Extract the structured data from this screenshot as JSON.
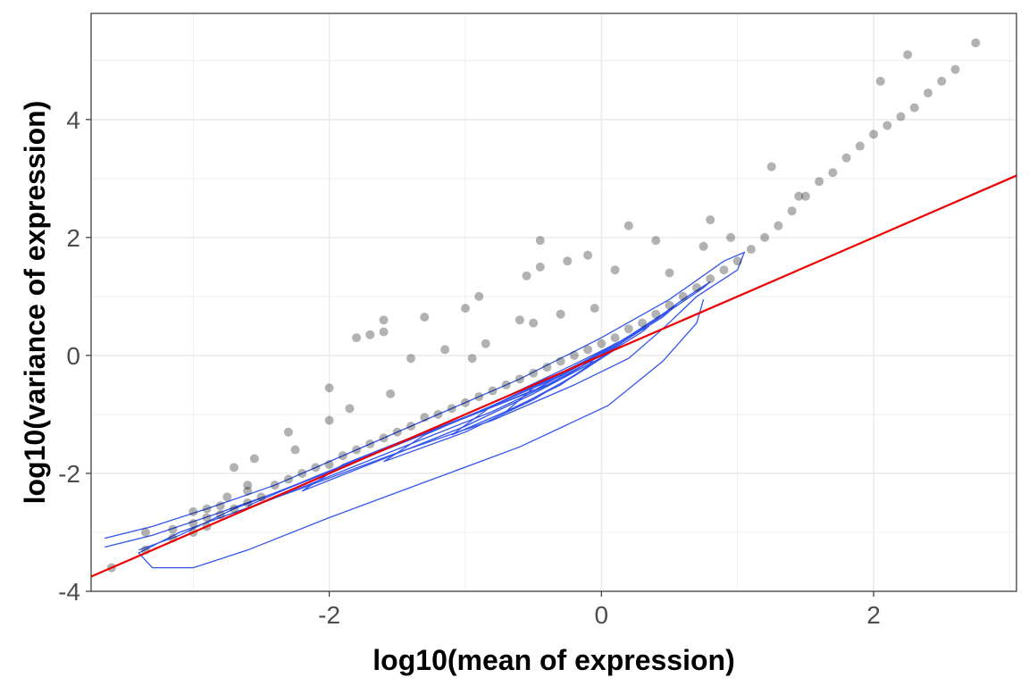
{
  "chart_data": {
    "type": "scatter",
    "title": "",
    "xlabel": "log10(mean of expression)",
    "ylabel": "log10(variance of expression)",
    "xlim": [
      -3.75,
      3.05
    ],
    "ylim": [
      -4.0,
      5.8
    ],
    "x_ticks": [
      -2,
      0,
      2
    ],
    "x_tick_labels": [
      "-2",
      "0",
      "2"
    ],
    "y_ticks": [
      -4,
      -2,
      0,
      2,
      4
    ],
    "y_tick_labels": [
      "-4",
      "-2",
      "0",
      "2",
      "4"
    ],
    "grid": true,
    "legend": "none",
    "colors": {
      "points": "#000000",
      "reference_line": "#ee0000",
      "contours": "#3355ee",
      "grid": "#ebebeb",
      "panel_border": "#333333"
    },
    "reference_line": {
      "slope": 1,
      "intercept": 0,
      "color": "#ee0000"
    },
    "series": [
      {
        "values": [
          [
            -3.6,
            -3.6
          ],
          [
            -3.35,
            -3.3
          ],
          [
            -3.35,
            -3.0
          ],
          [
            -3.15,
            -3.1
          ],
          [
            -3.15,
            -2.95
          ],
          [
            -3.0,
            -3.0
          ],
          [
            -3.0,
            -2.85
          ],
          [
            -3.0,
            -2.65
          ],
          [
            -2.9,
            -2.9
          ],
          [
            -2.9,
            -2.75
          ],
          [
            -2.9,
            -2.6
          ],
          [
            -2.8,
            -2.55
          ],
          [
            -2.8,
            -2.7
          ],
          [
            -2.7,
            -2.6
          ],
          [
            -2.6,
            -2.5
          ],
          [
            -2.5,
            -2.4
          ],
          [
            -2.75,
            -2.4
          ],
          [
            -2.6,
            -2.3
          ],
          [
            -2.4,
            -2.2
          ],
          [
            -2.3,
            -2.1
          ],
          [
            -2.2,
            -2.0
          ],
          [
            -2.1,
            -1.9
          ],
          [
            -2.0,
            -1.85
          ],
          [
            -1.9,
            -1.7
          ],
          [
            -1.8,
            -1.6
          ],
          [
            -1.7,
            -1.5
          ],
          [
            -1.6,
            -1.4
          ],
          [
            -1.5,
            -1.3
          ],
          [
            -1.4,
            -1.2
          ],
          [
            -1.3,
            -1.05
          ],
          [
            -1.2,
            -1.0
          ],
          [
            -1.1,
            -0.9
          ],
          [
            -1.0,
            -0.8
          ],
          [
            -0.9,
            -0.7
          ],
          [
            -0.8,
            -0.6
          ],
          [
            -0.7,
            -0.5
          ],
          [
            -0.6,
            -0.4
          ],
          [
            -0.5,
            -0.3
          ],
          [
            -0.4,
            -0.2
          ],
          [
            -0.3,
            -0.1
          ],
          [
            -0.2,
            0.0
          ],
          [
            -0.1,
            0.1
          ],
          [
            0.0,
            0.2
          ],
          [
            0.1,
            0.3
          ],
          [
            0.2,
            0.45
          ],
          [
            0.3,
            0.55
          ],
          [
            0.4,
            0.7
          ],
          [
            0.5,
            0.85
          ],
          [
            0.6,
            1.0
          ],
          [
            0.7,
            1.15
          ],
          [
            0.8,
            1.3
          ],
          [
            0.9,
            1.45
          ],
          [
            1.0,
            1.6
          ],
          [
            1.1,
            1.8
          ],
          [
            1.2,
            2.0
          ],
          [
            1.3,
            2.2
          ],
          [
            1.4,
            2.45
          ],
          [
            1.5,
            2.7
          ],
          [
            1.6,
            2.95
          ],
          [
            1.7,
            3.1
          ],
          [
            1.8,
            3.35
          ],
          [
            1.9,
            3.55
          ],
          [
            2.0,
            3.75
          ],
          [
            2.1,
            3.9
          ],
          [
            2.2,
            4.05
          ],
          [
            2.3,
            4.2
          ],
          [
            2.4,
            4.45
          ],
          [
            2.5,
            4.65
          ],
          [
            2.6,
            4.85
          ],
          [
            2.75,
            5.3
          ],
          [
            2.25,
            5.1
          ],
          [
            2.05,
            4.65
          ],
          [
            1.25,
            3.2
          ],
          [
            0.8,
            2.3
          ],
          [
            0.75,
            1.85
          ],
          [
            0.4,
            1.95
          ],
          [
            0.2,
            2.2
          ],
          [
            -0.45,
            1.95
          ],
          [
            -0.45,
            1.5
          ],
          [
            -0.55,
            1.35
          ],
          [
            -0.25,
            1.6
          ],
          [
            -0.1,
            1.7
          ],
          [
            0.1,
            1.45
          ],
          [
            -0.9,
            1.0
          ],
          [
            -1.0,
            0.8
          ],
          [
            -1.3,
            0.65
          ],
          [
            -1.6,
            0.6
          ],
          [
            -1.6,
            0.4
          ],
          [
            -1.7,
            0.35
          ],
          [
            -1.8,
            0.3
          ],
          [
            -0.85,
            0.2
          ],
          [
            -0.6,
            0.6
          ],
          [
            -0.5,
            0.55
          ],
          [
            -0.3,
            0.7
          ],
          [
            -1.15,
            0.1
          ],
          [
            -1.4,
            -0.05
          ],
          [
            -2.0,
            -0.55
          ],
          [
            -1.85,
            -0.9
          ],
          [
            -2.3,
            -1.3
          ],
          [
            -2.0,
            -1.1
          ],
          [
            -2.25,
            -1.6
          ],
          [
            -2.7,
            -1.9
          ],
          [
            -2.55,
            -1.75
          ],
          [
            -2.6,
            -2.2
          ],
          [
            -1.55,
            -0.65
          ],
          [
            -0.95,
            -0.05
          ],
          [
            -0.05,
            0.8
          ],
          [
            0.5,
            1.4
          ],
          [
            0.95,
            2.0
          ],
          [
            1.45,
            2.7
          ]
        ]
      }
    ],
    "contours": [
      {
        "level": 1,
        "points": [
          [
            -3.65,
            -3.1
          ],
          [
            -3.3,
            -2.9
          ],
          [
            -2.9,
            -2.6
          ],
          [
            -2.4,
            -2.2
          ],
          [
            -1.8,
            -1.6
          ],
          [
            -1.2,
            -1.0
          ],
          [
            -0.6,
            -0.4
          ],
          [
            0.0,
            0.3
          ],
          [
            0.5,
            0.95
          ],
          [
            0.9,
            1.6
          ],
          [
            1.05,
            1.75
          ],
          [
            1.0,
            1.45
          ],
          [
            0.7,
            1.0
          ],
          [
            0.45,
            0.45
          ],
          [
            0.2,
            -0.05
          ],
          [
            -0.2,
            -0.5
          ],
          [
            -0.8,
            -1.1
          ],
          [
            -1.5,
            -1.65
          ],
          [
            -2.2,
            -2.25
          ],
          [
            -2.8,
            -2.75
          ],
          [
            -3.1,
            -3.0
          ],
          [
            -3.4,
            -3.35
          ],
          [
            -3.3,
            -3.6
          ],
          [
            -3.0,
            -3.6
          ],
          [
            -2.6,
            -3.3
          ],
          [
            -2.0,
            -2.75
          ],
          [
            -1.3,
            -2.15
          ],
          [
            -0.6,
            -1.55
          ],
          [
            0.05,
            -0.85
          ],
          [
            0.45,
            -0.1
          ],
          [
            0.7,
            0.55
          ],
          [
            0.75,
            0.95
          ]
        ]
      },
      {
        "level": 2,
        "points": [
          [
            -3.65,
            -3.25
          ],
          [
            -3.3,
            -3.05
          ],
          [
            -2.85,
            -2.7
          ],
          [
            -2.3,
            -2.25
          ],
          [
            -1.7,
            -1.7
          ],
          [
            -1.1,
            -1.15
          ],
          [
            -0.5,
            -0.6
          ],
          [
            0.0,
            0.05
          ],
          [
            0.4,
            0.6
          ],
          [
            0.75,
            1.15
          ],
          [
            0.8,
            1.25
          ],
          [
            0.6,
            0.95
          ],
          [
            0.3,
            0.45
          ],
          [
            0.0,
            0.0
          ],
          [
            -0.4,
            -0.5
          ],
          [
            -1.0,
            -1.05
          ],
          [
            -1.6,
            -1.6
          ],
          [
            -2.2,
            -2.15
          ],
          [
            -2.7,
            -2.6
          ],
          [
            -3.1,
            -3.05
          ],
          [
            -3.4,
            -3.3
          ]
        ]
      },
      {
        "level": 3,
        "points": [
          [
            -2.6,
            -2.6
          ],
          [
            -2.0,
            -2.05
          ],
          [
            -1.4,
            -1.5
          ],
          [
            -0.8,
            -0.95
          ],
          [
            -0.3,
            -0.4
          ],
          [
            0.1,
            0.15
          ],
          [
            0.45,
            0.65
          ],
          [
            0.55,
            0.85
          ],
          [
            0.35,
            0.55
          ],
          [
            0.05,
            0.1
          ],
          [
            -0.3,
            -0.35
          ],
          [
            -0.9,
            -0.95
          ],
          [
            -1.5,
            -1.5
          ],
          [
            -2.1,
            -2.05
          ],
          [
            -2.6,
            -2.55
          ]
        ]
      },
      {
        "level": 4,
        "points": [
          [
            -2.2,
            -2.3
          ],
          [
            -1.6,
            -1.75
          ],
          [
            -1.0,
            -1.2
          ],
          [
            -0.5,
            -0.65
          ],
          [
            -0.05,
            -0.1
          ],
          [
            0.3,
            0.4
          ],
          [
            0.35,
            0.5
          ],
          [
            0.15,
            0.25
          ],
          [
            -0.2,
            -0.15
          ],
          [
            -0.7,
            -0.7
          ],
          [
            -1.3,
            -1.3
          ],
          [
            -1.9,
            -1.85
          ],
          [
            -2.2,
            -2.3
          ]
        ]
      },
      {
        "level": 5,
        "points": [
          [
            -1.6,
            -1.8
          ],
          [
            -1.0,
            -1.3
          ],
          [
            -0.5,
            -0.75
          ],
          [
            -0.1,
            -0.2
          ],
          [
            0.2,
            0.3
          ],
          [
            0.1,
            0.2
          ],
          [
            -0.2,
            -0.2
          ],
          [
            -0.7,
            -0.75
          ],
          [
            -1.3,
            -1.35
          ],
          [
            -1.6,
            -1.8
          ]
        ]
      },
      {
        "level": 6,
        "points": [
          [
            -1.1,
            -1.35
          ],
          [
            -0.6,
            -0.85
          ],
          [
            -0.2,
            -0.35
          ],
          [
            0.1,
            0.1
          ],
          [
            0.0,
            0.05
          ],
          [
            -0.3,
            -0.3
          ],
          [
            -0.8,
            -0.85
          ],
          [
            -1.1,
            -1.35
          ]
        ]
      },
      {
        "level": 7,
        "points": [
          [
            -0.7,
            -0.95
          ],
          [
            -0.3,
            -0.5
          ],
          [
            -0.05,
            -0.1
          ],
          [
            -0.15,
            -0.15
          ],
          [
            -0.5,
            -0.55
          ],
          [
            -0.7,
            -0.95
          ]
        ]
      }
    ]
  }
}
